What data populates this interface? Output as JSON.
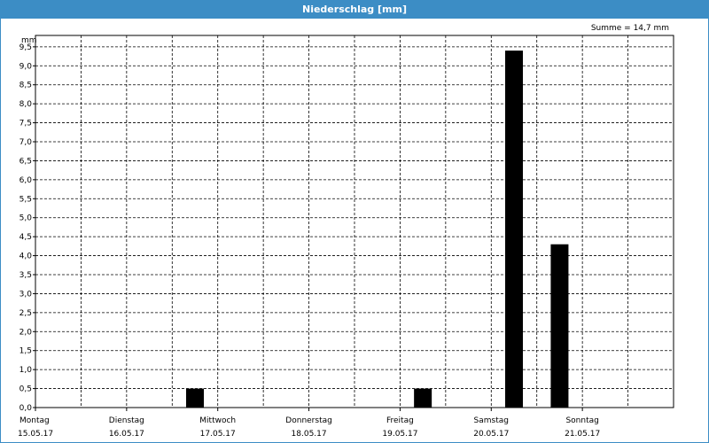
{
  "window": {
    "title": "Niederschlag [mm]"
  },
  "summary": "Summe = 14,7 mm",
  "chart_data": {
    "type": "bar",
    "title": "Niederschlag [mm]",
    "ylabel": "mm",
    "ylim": [
      0,
      9.8
    ],
    "yticks": [
      "0,0",
      "0,5",
      "1,0",
      "1,5",
      "2,0",
      "2,5",
      "3,0",
      "3,5",
      "4,0",
      "4,5",
      "5,0",
      "5,5",
      "6,0",
      "6,5",
      "7,0",
      "7,5",
      "8,0",
      "8,5",
      "9,0",
      "9,5"
    ],
    "days": [
      {
        "name": "Montag",
        "date": "15.05.17"
      },
      {
        "name": "Dienstag",
        "date": "16.05.17"
      },
      {
        "name": "Mittwoch",
        "date": "17.05.17"
      },
      {
        "name": "Donnerstag",
        "date": "18.05.17"
      },
      {
        "name": "Freitag",
        "date": "19.05.17"
      },
      {
        "name": "Samstag",
        "date": "20.05.17"
      },
      {
        "name": "Sonntag",
        "date": "21.05.17"
      }
    ],
    "bars": [
      {
        "day": 1,
        "half": 2,
        "value": 0.5
      },
      {
        "day": 4,
        "half": 1,
        "value": 0.5
      },
      {
        "day": 5,
        "half": 1,
        "value": 9.4
      },
      {
        "day": 5,
        "half": 2,
        "value": 4.3
      }
    ],
    "grid": true,
    "bar_color": "#000000"
  }
}
